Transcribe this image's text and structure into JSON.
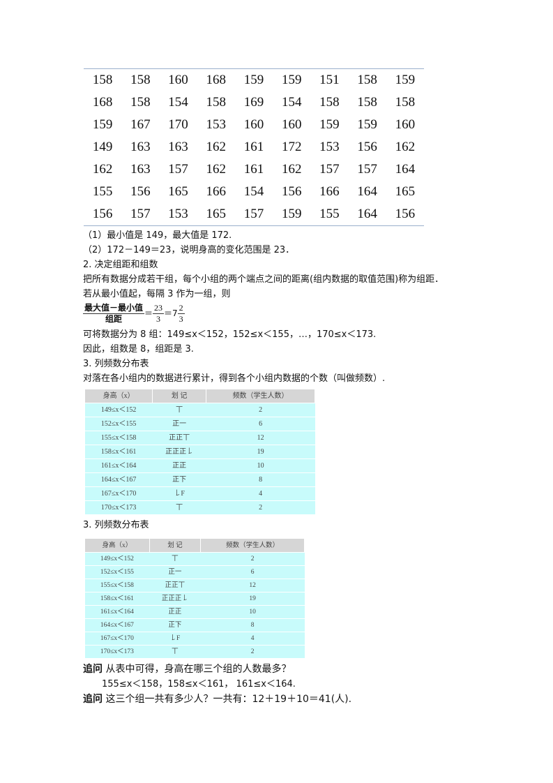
{
  "heights": [
    [
      "158",
      "158",
      "160",
      "168",
      "159",
      "159",
      "151",
      "158",
      "159"
    ],
    [
      "168",
      "158",
      "154",
      "158",
      "169",
      "154",
      "158",
      "158",
      "158"
    ],
    [
      "159",
      "167",
      "170",
      "153",
      "160",
      "160",
      "159",
      "159",
      "160"
    ],
    [
      "149",
      "163",
      "163",
      "162",
      "161",
      "172",
      "153",
      "156",
      "162"
    ],
    [
      "162",
      "163",
      "157",
      "162",
      "161",
      "162",
      "157",
      "157",
      "164"
    ],
    [
      "155",
      "156",
      "165",
      "166",
      "154",
      "156",
      "166",
      "164",
      "165"
    ],
    [
      "156",
      "157",
      "153",
      "165",
      "157",
      "159",
      "155",
      "164",
      "156"
    ]
  ],
  "lines": {
    "l1": "（1）最小值是 149，最大值是 172.",
    "l2": "（2）172－149＝23，说明身高的变化范围是 23．",
    "l3": "2. 决定组距和组数",
    "l4": "把所有数据分成若干组，每个小组的两个端点之间的距离(组内数据的取值范围)称为组距．",
    "l5": "若从最小值起，每隔 3 作为一组，则",
    "l6": "可将数据分为 8 组：149≤x＜152，152≤x＜155，…，170≤x＜173.",
    "l7": "因此，组数是 8，组距是 3.",
    "l8": "3. 列频数分布表",
    "l9": "对落在各小组内的数据进行累计，得到各个小组内数据的个数（叫做频数）.",
    "l10": "3. 列频数分布表"
  },
  "formula": {
    "num": "最大值－最小值",
    "den": "组距",
    "eq1": "＝",
    "n2": "23",
    "d2": "3",
    "eq2": "＝7",
    "n3": "2",
    "d3": "3"
  },
  "freq_table": {
    "headers": [
      "身高（x）",
      "划  记",
      "频数（学生人数）"
    ],
    "rows": [
      [
        "149≤x＜152",
        "丅",
        "2"
      ],
      [
        "152≤x＜155",
        "正一",
        "6"
      ],
      [
        "155≤x＜158",
        "正正丅",
        "12"
      ],
      [
        "158≤x＜161",
        "正正正𠄌",
        "19"
      ],
      [
        "161≤x＜164",
        "正正",
        "10"
      ],
      [
        "164≤x＜167",
        "正下",
        "8"
      ],
      [
        "167≤x＜170",
        "𠄌F",
        "4"
      ],
      [
        "170≤x＜173",
        "丅",
        "2"
      ]
    ]
  },
  "q1": {
    "tag": "追问",
    "text": " 从表中可得，身高在哪三个组的人数最多？",
    "answer": "155≤x＜158，158≤x＜161，   161≤x＜164."
  },
  "q2": {
    "tag": "追问",
    "text": " 这三个组一共有多少人？一共有：12＋19＋10＝41(人)."
  }
}
